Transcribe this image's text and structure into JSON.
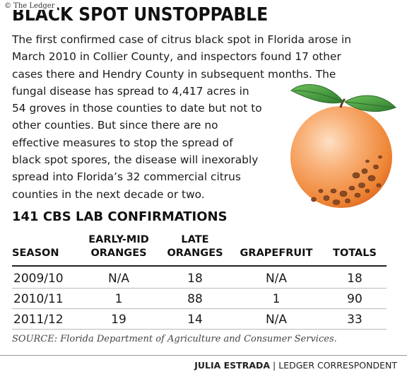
{
  "credit": "© The Ledger",
  "headline": "BLACK SPOT UNSTOPPABLE",
  "body_lines": [
    "The first confirmed case of citrus black spot in Florida arose in",
    "March 2010 in Collier County, and inspectors found 17 other",
    "cases there and Hendry County in subsequent months. The",
    "fungal disease has spread to 4,417 acres in",
    "54 groves in those counties to date but not to",
    "other counties. But since there are no",
    "effective measures to stop the spread of",
    "black spot spores, the disease will inexorably",
    "spread into Florida’s 32 commercial citrus",
    "counties in the next decade or two."
  ],
  "table": {
    "title": "141 CBS LAB CONFIRMATIONS",
    "headers": {
      "season": "SEASON",
      "early_mid_1": "EARLY-MID",
      "early_mid_2": "ORANGES",
      "late_1": "LATE",
      "late_2": "ORANGES",
      "grapefruit": "GRAPEFRUIT",
      "totals": "TOTALS"
    },
    "rows": [
      {
        "season": "2009/10",
        "early_mid": "N/A",
        "late": "18",
        "grapefruit": "N/A",
        "totals": "18"
      },
      {
        "season": "2010/11",
        "early_mid": "1",
        "late": "88",
        "grapefruit": "1",
        "totals": "90"
      },
      {
        "season": "2011/12",
        "early_mid": "19",
        "late": "14",
        "grapefruit": "N/A",
        "totals": "33"
      }
    ]
  },
  "source": "SOURCE: Florida Department of Agriculture and Consumer Services.",
  "byline": {
    "name": "JULIA ESTRADA",
    "separator": "|",
    "role": "LEDGER CORRESPONDENT"
  },
  "colors": {
    "orange_light": "#f9b27a",
    "orange_dark": "#e86f25",
    "leaf_green": "#3f9a3b",
    "spot_brown": "#8a4a24"
  },
  "icons": {
    "illustration": "orange-with-black-spots-illustration"
  }
}
